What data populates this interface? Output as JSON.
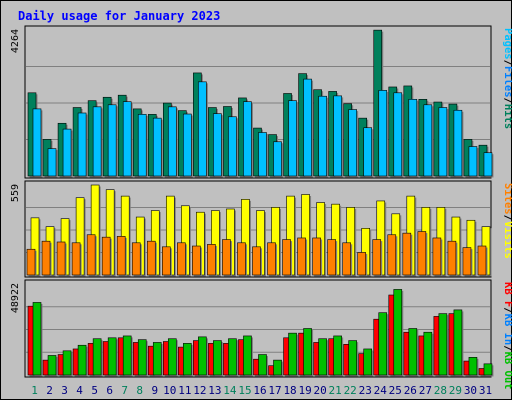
{
  "chart_data": {
    "type": "bar",
    "title": "Daily usage for January 2023",
    "categories": [
      "1",
      "2",
      "3",
      "4",
      "5",
      "6",
      "7",
      "8",
      "9",
      "10",
      "11",
      "12",
      "13",
      "14",
      "15",
      "16",
      "17",
      "18",
      "19",
      "20",
      "21",
      "22",
      "23",
      "24",
      "25",
      "26",
      "27",
      "28",
      "29",
      "30",
      "31"
    ],
    "weekend_days": [
      "1",
      "7",
      "8",
      "14",
      "15",
      "21",
      "22",
      "28",
      "29"
    ],
    "panels": [
      {
        "id": "hits",
        "ymax": 4264,
        "ymax_label": "4264",
        "series": [
          {
            "name": "Hits",
            "color": "#00805c",
            "values": [
              2430,
              1070,
              1540,
              2000,
              2200,
              2300,
              2360,
              1960,
              1800,
              2130,
              1910,
              3010,
              2000,
              2030,
              2280,
              1400,
              1210,
              2410,
              2990,
              2520,
              2470,
              2110,
              1690,
              4260,
              2600,
              2630,
              2240,
              2160,
              2100,
              1070,
              900
            ]
          },
          {
            "name": "Files",
            "color": "#0080ff",
            "values": [
              1960,
              800,
              1370,
              1840,
              2020,
              2080,
              2170,
              1800,
              1690,
              2020,
              1810,
              2750,
              1820,
              1730,
              2170,
              1270,
              1000,
              2200,
              2830,
              2330,
              2340,
              1940,
              1410,
              2500,
              2430,
              2240,
              2080,
              2000,
              1920,
              860,
              680
            ]
          },
          {
            "name": "Pages",
            "color": "#00c0ff",
            "values": [
              1960,
              800,
              1370,
              1840,
              2020,
              2080,
              2170,
              1800,
              1690,
              2020,
              1810,
              2750,
              1820,
              1730,
              2170,
              1270,
              1000,
              2200,
              2830,
              2330,
              2340,
              1940,
              1410,
              2500,
              2430,
              2240,
              2080,
              2000,
              1920,
              860,
              680
            ]
          }
        ]
      },
      {
        "id": "visits",
        "ymax": 559,
        "ymax_label": "559",
        "series": [
          {
            "name": "Visits",
            "color": "#ffff00",
            "values": [
              355,
              300,
              350,
              480,
              560,
              530,
              490,
              360,
              400,
              490,
              430,
              390,
              400,
              410,
              470,
              400,
              420,
              490,
              500,
              450,
              440,
              420,
              290,
              460,
              380,
              490,
              420,
              420,
              360,
              340,
              300
            ]
          },
          {
            "name": "Sites",
            "color": "#ff8000",
            "values": [
              160,
              210,
              205,
              200,
              250,
              235,
              240,
              200,
              210,
              175,
              200,
              180,
              190,
              220,
              200,
              175,
              200,
              220,
              230,
              230,
              220,
              200,
              140,
              220,
              250,
              260,
              270,
              230,
              210,
              170,
              180
            ]
          }
        ]
      },
      {
        "id": "kbytes",
        "ymax": 48922,
        "ymax_label": "48922",
        "series": [
          {
            "name": "KB F",
            "color": "#ff0000",
            "values": [
              37000,
              8000,
              11000,
              14000,
              17000,
              18000,
              20000,
              17500,
              15500,
              18000,
              15000,
              18500,
              17000,
              17000,
              19000,
              8500,
              5000,
              20000,
              22500,
              17500,
              19500,
              16500,
              11500,
              30000,
              43000,
              23000,
              21000,
              31500,
              33000,
              7500,
              3500
            ]
          },
          {
            "name": "KB In",
            "color": "#0080ff",
            "values": [
              0,
              0,
              0,
              0,
              0,
              0,
              0,
              0,
              0,
              0,
              0,
              0,
              0,
              0,
              0,
              0,
              0,
              0,
              0,
              0,
              0,
              0,
              0,
              0,
              0,
              0,
              0,
              0,
              0,
              0,
              0
            ]
          },
          {
            "name": "KB Out",
            "color": "#00c000",
            "values": [
              39000,
              10500,
              13000,
              16000,
              19500,
              20000,
              21000,
              19000,
              17500,
              19500,
              17000,
              20500,
              18500,
              19500,
              21000,
              11000,
              8000,
              22500,
              25000,
              19500,
              21000,
              18500,
              14000,
              33500,
              46000,
              25000,
              23000,
              33000,
              35000,
              9500,
              6000
            ]
          }
        ]
      }
    ],
    "right_labels": [
      {
        "panel": "hits",
        "parts": [
          {
            "text": "Pages",
            "color": "#00c0ff"
          },
          {
            "text": "/",
            "color": "#000000"
          },
          {
            "text": "Files",
            "color": "#0080ff"
          },
          {
            "text": "/",
            "color": "#000000"
          },
          {
            "text": "Hits",
            "color": "#00805c"
          }
        ]
      },
      {
        "panel": "visits",
        "parts": [
          {
            "text": "Sites",
            "color": "#ff8000"
          },
          {
            "text": "/",
            "color": "#000000"
          },
          {
            "text": "Visits",
            "color": "#ffff00"
          }
        ]
      },
      {
        "panel": "kbytes",
        "parts": [
          {
            "text": "KB F",
            "color": "#ff0000"
          },
          {
            "text": "/",
            "color": "#000000"
          },
          {
            "text": "KB In",
            "color": "#0080ff"
          },
          {
            "text": "/",
            "color": "#000000"
          },
          {
            "text": "KB Out",
            "color": "#00c000"
          }
        ]
      }
    ],
    "colors": {
      "background": "#c0c0c0",
      "title": "#0000ff",
      "weekday_label": "#000080",
      "weekend_label": "#00805c"
    },
    "grid": true,
    "legend_position": "right, vertical"
  }
}
